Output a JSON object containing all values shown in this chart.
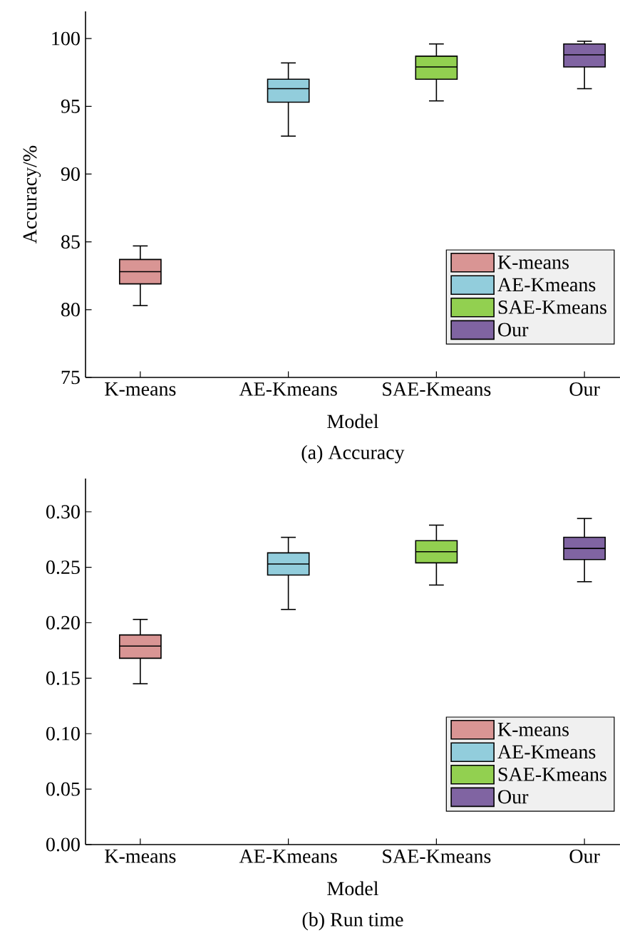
{
  "chart_data": [
    {
      "type": "box",
      "ylabel": "Accuracy/%",
      "xlabel": "Model",
      "annotations": [
        "(a) Accuracy"
      ],
      "categories": [
        "K-means",
        "AE-Kmeans",
        "SAE-Kmeans",
        "Our"
      ],
      "series": [
        {
          "name": "K-means",
          "color": "#d99594",
          "boxes": [
            {
              "low": 80.3,
              "q1": 81.9,
              "median": 82.8,
              "q3": 83.7,
              "high": 84.7
            },
            null,
            null,
            null
          ]
        },
        {
          "name": "AE-Kmeans",
          "color": "#92cddc",
          "boxes": [
            null,
            {
              "low": 92.8,
              "q1": 95.3,
              "median": 96.3,
              "q3": 97.0,
              "high": 98.2
            },
            null,
            null
          ]
        },
        {
          "name": "SAE-Kmeans",
          "color": "#92d050",
          "boxes": [
            null,
            null,
            {
              "low": 95.4,
              "q1": 97.0,
              "median": 97.9,
              "q3": 98.7,
              "high": 99.6
            },
            null
          ]
        },
        {
          "name": "Our",
          "color": "#8064a2",
          "boxes": [
            null,
            null,
            null,
            {
              "low": 96.3,
              "q1": 97.9,
              "median": 98.8,
              "q3": 99.6,
              "high": 99.8
            }
          ]
        }
      ],
      "ylim": [
        75,
        102
      ],
      "yticks": [
        75,
        80,
        85,
        90,
        95,
        100
      ],
      "legend": "bottom right",
      "grid": false
    },
    {
      "type": "box",
      "xlabel": "Model",
      "annotations": [
        "(b) Run time"
      ],
      "categories": [
        "K-means",
        "AE-Kmeans",
        "SAE-Kmeans",
        "Our"
      ],
      "series": [
        {
          "name": "K-means",
          "color": "#d99594",
          "boxes": [
            {
              "low": 0.145,
              "q1": 0.168,
              "median": 0.179,
              "q3": 0.189,
              "high": 0.203
            },
            null,
            null,
            null
          ]
        },
        {
          "name": "AE-Kmeans",
          "color": "#92cddc",
          "boxes": [
            null,
            {
              "low": 0.212,
              "q1": 0.243,
              "median": 0.253,
              "q3": 0.263,
              "high": 0.277
            },
            null,
            null
          ]
        },
        {
          "name": "SAE-Kmeans",
          "color": "#92d050",
          "boxes": [
            null,
            null,
            {
              "low": 0.234,
              "q1": 0.254,
              "median": 0.264,
              "q3": 0.274,
              "high": 0.288
            },
            null
          ]
        },
        {
          "name": "Our",
          "color": "#8064a2",
          "boxes": [
            null,
            null,
            null,
            {
              "low": 0.237,
              "q1": 0.257,
              "median": 0.267,
              "q3": 0.277,
              "high": 0.294
            }
          ]
        }
      ],
      "ylim": [
        0,
        0.33
      ],
      "yticks": [
        {
          "value": 0,
          "label": "0.00"
        },
        {
          "value": 0.05,
          "label": "0.05"
        },
        {
          "value": 0.1,
          "label": "0.10"
        },
        {
          "value": 0.15,
          "label": "0.15"
        },
        {
          "value": 0.2,
          "label": "0.20"
        },
        {
          "value": 0.25,
          "label": "0.25"
        },
        {
          "value": 0.3,
          "label": "0.30"
        }
      ],
      "legend": "bottom right",
      "grid": false
    }
  ]
}
